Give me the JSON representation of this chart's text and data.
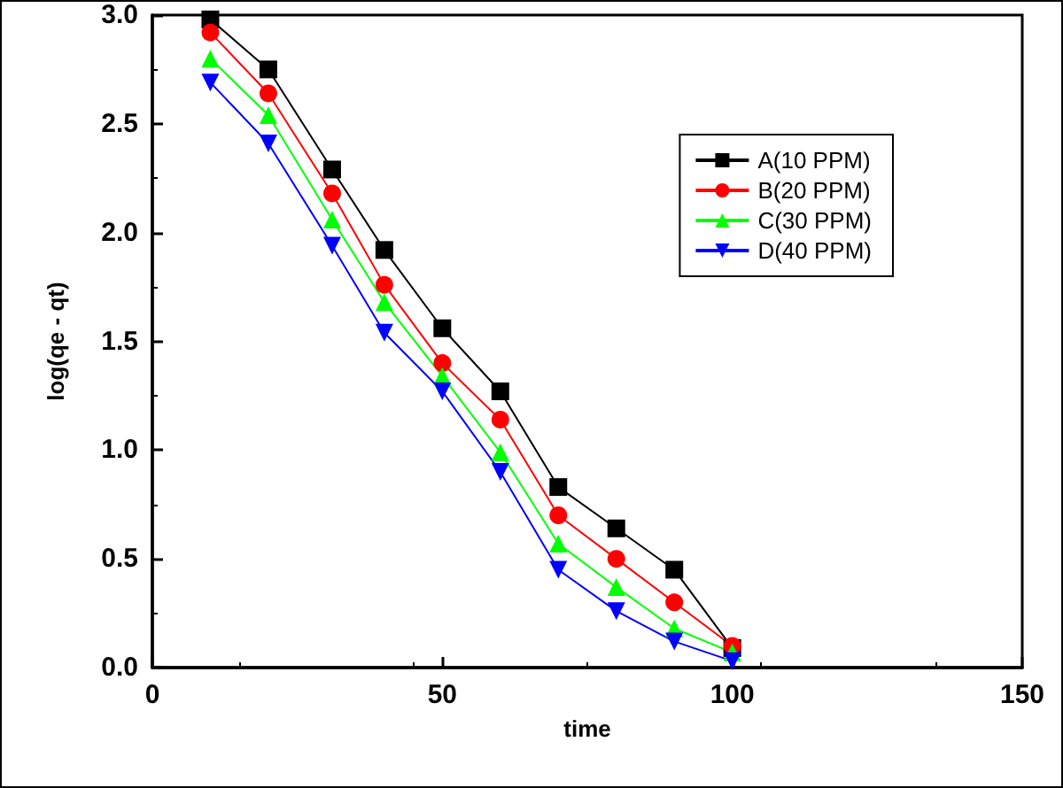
{
  "chart_data": {
    "type": "line",
    "xlabel": "time",
    "ylabel": "log(qe - qt)",
    "xlim": [
      0,
      150
    ],
    "xticks": [
      0,
      50,
      100,
      150
    ],
    "ylim": [
      0,
      3
    ],
    "yticks": [
      {
        "value": 0,
        "label": "0.0"
      },
      {
        "value": 0.5,
        "label": "0.5"
      },
      {
        "value": 1,
        "label": "1.0"
      },
      {
        "value": 1.5,
        "label": "1.5"
      },
      {
        "value": 2,
        "label": "2.0"
      },
      {
        "value": 2.5,
        "label": "2.5"
      },
      {
        "value": 3,
        "label": "3.0"
      }
    ],
    "grid": false,
    "legend": "top right",
    "x": [
      10,
      20,
      31,
      40,
      50,
      60,
      70,
      80,
      90,
      100
    ],
    "series": [
      {
        "name": "A(10 PPM)",
        "color": "#000000",
        "marker": "square",
        "values": [
          2.98,
          2.75,
          2.29,
          1.92,
          1.56,
          1.27,
          0.83,
          0.64,
          0.45,
          0.09
        ]
      },
      {
        "name": "B(20 PPM)",
        "color": "#ff0000",
        "marker": "circle",
        "values": [
          2.92,
          2.64,
          2.18,
          1.76,
          1.4,
          1.14,
          0.7,
          0.5,
          0.3,
          0.1
        ]
      },
      {
        "name": "C(30 PPM)",
        "color": "#00ff00",
        "marker": "triangle",
        "values": [
          2.8,
          2.54,
          2.06,
          1.68,
          1.34,
          0.99,
          0.57,
          0.37,
          0.18,
          0.07
        ]
      },
      {
        "name": "D(40 PPM)",
        "color": "#0000ff",
        "marker": "triangle-down",
        "values": [
          2.69,
          2.41,
          1.94,
          1.54,
          1.27,
          0.9,
          0.45,
          0.26,
          0.12,
          0.03
        ]
      }
    ]
  }
}
